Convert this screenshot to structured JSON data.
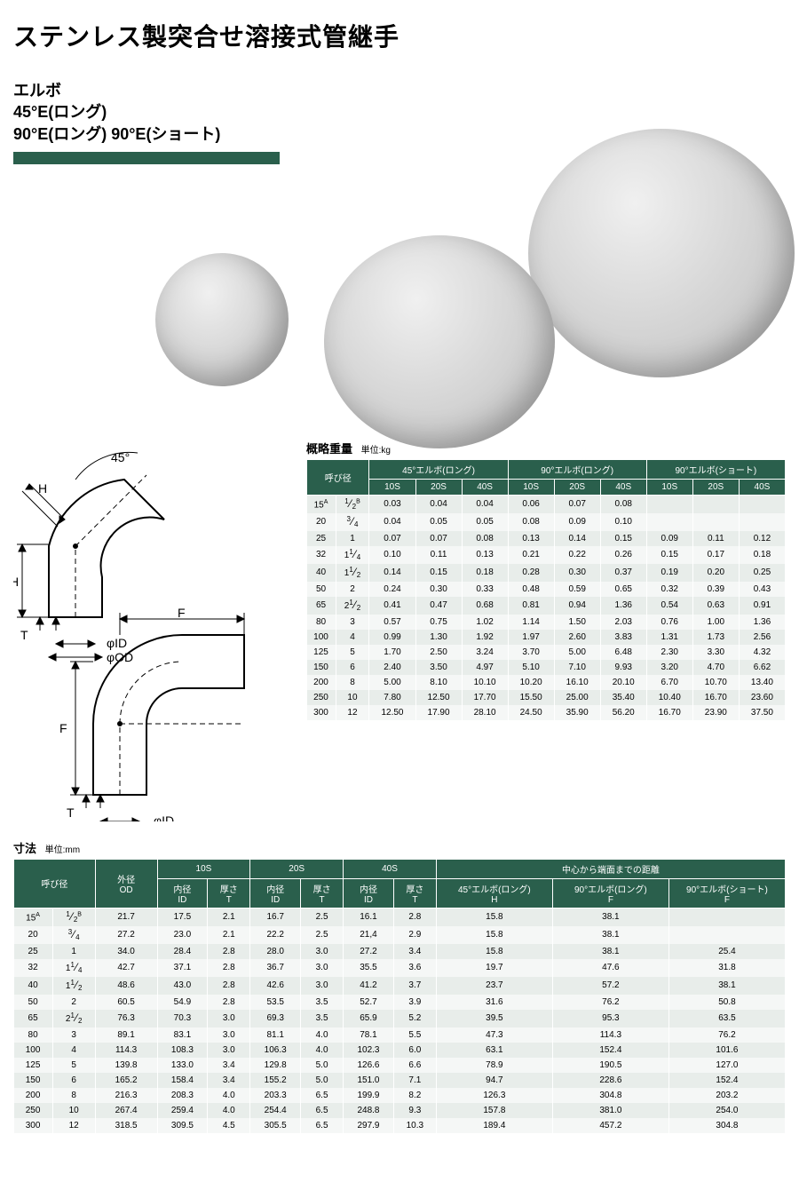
{
  "colors": {
    "brand_green": "#2a5f4c",
    "row_odd": "#e8edea",
    "row_even": "#f5f7f6"
  },
  "header": {
    "main_title": "ステンレス製突合せ溶接式管継手",
    "sub1": "エルボ",
    "sub2": "45°E(ロング)",
    "sub3": "90°E(ロング) 90°E(ショート)"
  },
  "diagram": {
    "angle_label": "45°",
    "H": "H",
    "H2": "H",
    "T": "T",
    "F": "F",
    "F2": "F",
    "phi_id": "φID",
    "phi_od": "φOD"
  },
  "weight_table": {
    "title": "概略重量",
    "unit": "単位:kg",
    "group_headers": [
      "呼び径",
      "45°エルボ(ロング)",
      "90°エルボ(ロング)",
      "90°エルボ(ショート)"
    ],
    "sub_headers": [
      "10S",
      "20S",
      "40S",
      "10S",
      "20S",
      "40S",
      "10S",
      "20S",
      "40S"
    ],
    "rows": [
      {
        "a": "15",
        "asup": "A",
        "b": "1/2",
        "bsup": "B",
        "v": [
          "0.03",
          "0.04",
          "0.04",
          "0.06",
          "0.07",
          "0.08",
          "",
          "",
          ""
        ]
      },
      {
        "a": "20",
        "b": "3/4",
        "v": [
          "0.04",
          "0.05",
          "0.05",
          "0.08",
          "0.09",
          "0.10",
          "",
          "",
          ""
        ]
      },
      {
        "a": "25",
        "b": "1",
        "v": [
          "0.07",
          "0.07",
          "0.08",
          "0.13",
          "0.14",
          "0.15",
          "0.09",
          "0.11",
          "0.12"
        ]
      },
      {
        "a": "32",
        "b": "1 1/4",
        "v": [
          "0.10",
          "0.11",
          "0.13",
          "0.21",
          "0.22",
          "0.26",
          "0.15",
          "0.17",
          "0.18"
        ]
      },
      {
        "a": "40",
        "b": "1 1/2",
        "v": [
          "0.14",
          "0.15",
          "0.18",
          "0.28",
          "0.30",
          "0.37",
          "0.19",
          "0.20",
          "0.25"
        ]
      },
      {
        "a": "50",
        "b": "2",
        "v": [
          "0.24",
          "0.30",
          "0.33",
          "0.48",
          "0.59",
          "0.65",
          "0.32",
          "0.39",
          "0.43"
        ]
      },
      {
        "a": "65",
        "b": "2 1/2",
        "v": [
          "0.41",
          "0.47",
          "0.68",
          "0.81",
          "0.94",
          "1.36",
          "0.54",
          "0.63",
          "0.91"
        ]
      },
      {
        "a": "80",
        "b": "3",
        "v": [
          "0.57",
          "0.75",
          "1.02",
          "1.14",
          "1.50",
          "2.03",
          "0.76",
          "1.00",
          "1.36"
        ]
      },
      {
        "a": "100",
        "b": "4",
        "v": [
          "0.99",
          "1.30",
          "1.92",
          "1.97",
          "2.60",
          "3.83",
          "1.31",
          "1.73",
          "2.56"
        ]
      },
      {
        "a": "125",
        "b": "5",
        "v": [
          "1.70",
          "2.50",
          "3.24",
          "3.70",
          "5.00",
          "6.48",
          "2.30",
          "3.30",
          "4.32"
        ]
      },
      {
        "a": "150",
        "b": "6",
        "v": [
          "2.40",
          "3.50",
          "4.97",
          "5.10",
          "7.10",
          "9.93",
          "3.20",
          "4.70",
          "6.62"
        ]
      },
      {
        "a": "200",
        "b": "8",
        "v": [
          "5.00",
          "8.10",
          "10.10",
          "10.20",
          "16.10",
          "20.10",
          "6.70",
          "10.70",
          "13.40"
        ]
      },
      {
        "a": "250",
        "b": "10",
        "v": [
          "7.80",
          "12.50",
          "17.70",
          "15.50",
          "25.00",
          "35.40",
          "10.40",
          "16.70",
          "23.60"
        ]
      },
      {
        "a": "300",
        "b": "12",
        "v": [
          "12.50",
          "17.90",
          "28.10",
          "24.50",
          "35.90",
          "56.20",
          "16.70",
          "23.90",
          "37.50"
        ]
      }
    ]
  },
  "dim_table": {
    "title": "寸法",
    "unit": "単位:mm",
    "top_groups": [
      "呼び径",
      "外径\nOD",
      "10S",
      "20S",
      "40S",
      "中心から端面までの距離"
    ],
    "sub": [
      "内径\nID",
      "厚さ\nT",
      "内径\nID",
      "厚さ\nT",
      "内径\nID",
      "厚さ\nT",
      "45°エルボ(ロング)\nH",
      "90°エルボ(ロング)\nF",
      "90°エルボ(ショート)\nF"
    ],
    "rows": [
      {
        "a": "15",
        "asup": "A",
        "b": "1/2",
        "bsup": "B",
        "od": "21.7",
        "v": [
          "17.5",
          "2.1",
          "16.7",
          "2.5",
          "16.1",
          "2.8",
          "15.8",
          "38.1",
          ""
        ]
      },
      {
        "a": "20",
        "b": "3/4",
        "od": "27.2",
        "v": [
          "23.0",
          "2.1",
          "22.2",
          "2.5",
          "21,4",
          "2.9",
          "15.8",
          "38.1",
          ""
        ]
      },
      {
        "a": "25",
        "b": "1",
        "od": "34.0",
        "v": [
          "28.4",
          "2.8",
          "28.0",
          "3.0",
          "27.2",
          "3.4",
          "15.8",
          "38.1",
          "25.4"
        ]
      },
      {
        "a": "32",
        "b": "1 1/4",
        "od": "42.7",
        "v": [
          "37.1",
          "2.8",
          "36.7",
          "3.0",
          "35.5",
          "3.6",
          "19.7",
          "47.6",
          "31.8"
        ]
      },
      {
        "a": "40",
        "b": "1 1/2",
        "od": "48.6",
        "v": [
          "43.0",
          "2.8",
          "42.6",
          "3.0",
          "41.2",
          "3.7",
          "23.7",
          "57.2",
          "38.1"
        ]
      },
      {
        "a": "50",
        "b": "2",
        "od": "60.5",
        "v": [
          "54.9",
          "2.8",
          "53.5",
          "3.5",
          "52.7",
          "3.9",
          "31.6",
          "76.2",
          "50.8"
        ]
      },
      {
        "a": "65",
        "b": "2 1/2",
        "od": "76.3",
        "v": [
          "70.3",
          "3.0",
          "69.3",
          "3.5",
          "65.9",
          "5.2",
          "39.5",
          "95.3",
          "63.5"
        ]
      },
      {
        "a": "80",
        "b": "3",
        "od": "89.1",
        "v": [
          "83.1",
          "3.0",
          "81.1",
          "4.0",
          "78.1",
          "5.5",
          "47.3",
          "114.3",
          "76.2"
        ]
      },
      {
        "a": "100",
        "b": "4",
        "od": "114.3",
        "v": [
          "108.3",
          "3.0",
          "106.3",
          "4.0",
          "102.3",
          "6.0",
          "63.1",
          "152.4",
          "101.6"
        ]
      },
      {
        "a": "125",
        "b": "5",
        "od": "139.8",
        "v": [
          "133.0",
          "3.4",
          "129.8",
          "5.0",
          "126.6",
          "6.6",
          "78.9",
          "190.5",
          "127.0"
        ]
      },
      {
        "a": "150",
        "b": "6",
        "od": "165.2",
        "v": [
          "158.4",
          "3.4",
          "155.2",
          "5.0",
          "151.0",
          "7.1",
          "94.7",
          "228.6",
          "152.4"
        ]
      },
      {
        "a": "200",
        "b": "8",
        "od": "216.3",
        "v": [
          "208.3",
          "4.0",
          "203.3",
          "6.5",
          "199.9",
          "8.2",
          "126.3",
          "304.8",
          "203.2"
        ]
      },
      {
        "a": "250",
        "b": "10",
        "od": "267.4",
        "v": [
          "259.4",
          "4.0",
          "254.4",
          "6.5",
          "248.8",
          "9.3",
          "157.8",
          "381.0",
          "254.0"
        ]
      },
      {
        "a": "300",
        "b": "12",
        "od": "318.5",
        "v": [
          "309.5",
          "4.5",
          "305.5",
          "6.5",
          "297.9",
          "10.3",
          "189.4",
          "457.2",
          "304.8"
        ]
      }
    ]
  }
}
